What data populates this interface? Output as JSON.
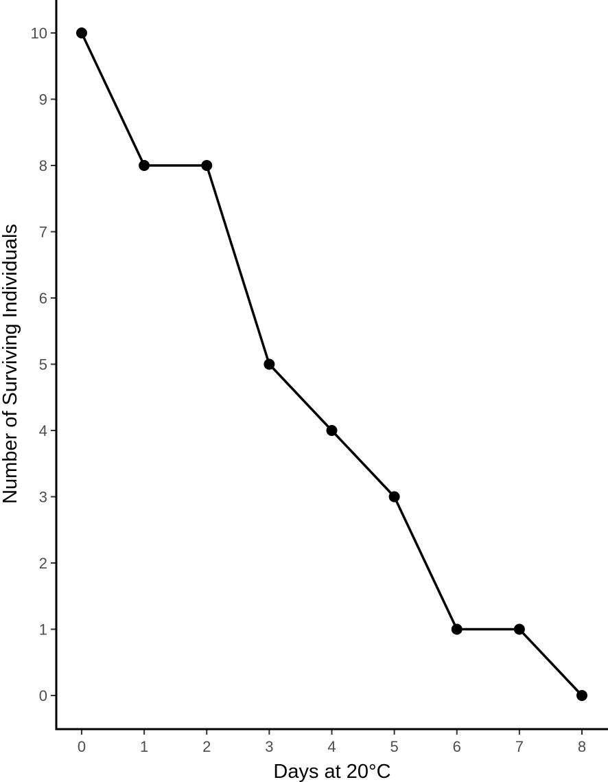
{
  "chart_data": {
    "type": "line",
    "title": "",
    "xlabel": "Days at 20°C",
    "ylabel": "Number of Surviving Individuals",
    "x": [
      0,
      1,
      2,
      3,
      4,
      5,
      6,
      7,
      8
    ],
    "series": [
      {
        "values": [
          10,
          8,
          8,
          5,
          4,
          3,
          1,
          1,
          0
        ]
      }
    ],
    "xticks": [
      "0",
      "1",
      "2",
      "3",
      "4",
      "5",
      "6",
      "7",
      "8"
    ],
    "yticks": [
      "0",
      "1",
      "2",
      "3",
      "4",
      "5",
      "6",
      "7",
      "8",
      "9",
      "10"
    ],
    "xlim": [
      -0.4,
      8.4
    ],
    "ylim": [
      -0.5,
      10.5
    ],
    "grid": false,
    "legend": "none",
    "colors": {
      "line": "#000000",
      "marker": "#000000",
      "axis": "#000000",
      "tick_text": "#4d4d4d"
    }
  }
}
